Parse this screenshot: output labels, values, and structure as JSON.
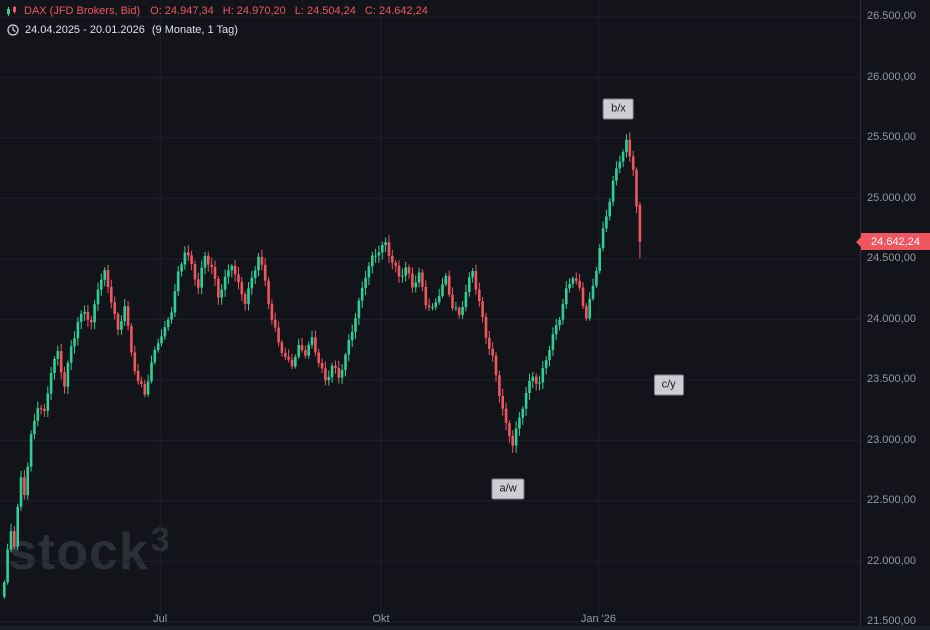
{
  "header": {
    "symbol": "DAX (JFD Brokers, Bid)",
    "ohlc": {
      "open": "O: 24.947,34",
      "high": "H: 24.970,20",
      "low": "L: 24.504,24",
      "close": "C: 24.642,24"
    },
    "date_range": "24.04.2025 - 20.01.2026",
    "duration": "(9 Monate, 1 Tag)"
  },
  "icons": {
    "chart_type": "candlestick-icon",
    "clock": "clock-icon"
  },
  "watermark": {
    "text": "stock",
    "sup": "3"
  },
  "price_tag": {
    "label": "24.642,24",
    "price": 24642.24
  },
  "colors": {
    "bg": "#12141a",
    "grid": "#1e212a",
    "up": "#2fcf94",
    "down": "#ef5660",
    "axis_text": "#9299a3",
    "date_text": "#dde0e5",
    "annotation_bg": "#ccced3",
    "annotation_text": "#17191d",
    "price_tag_bg": "#ef5660",
    "watermark": "#2b2f37"
  },
  "chart_data": {
    "type": "candlestick",
    "title": "DAX (JFD Brokers, Bid)",
    "timeframe": "1 Tag",
    "period": "9 Monate, 1 Tag",
    "ohlc_last": {
      "open": 24947.34,
      "high": 24970.2,
      "low": 24504.24,
      "close": 24642.24
    },
    "final_candle": {
      "o": 24947.34,
      "h": 24970.2,
      "l": 24504.24,
      "c": 24642.24
    },
    "total_candles": 191,
    "y_axis": {
      "min": 21350,
      "max": 26650,
      "ticks": [
        {
          "price": 26500,
          "label": "26.500,00"
        },
        {
          "price": 26000,
          "label": "26.000,00"
        },
        {
          "price": 25500,
          "label": "25.500,00"
        },
        {
          "price": 25000,
          "label": "25.000,00"
        },
        {
          "price": 24500,
          "label": "24.500,00"
        },
        {
          "price": 24000,
          "label": "24.000,00"
        },
        {
          "price": 23500,
          "label": "23.500,00"
        },
        {
          "price": 23000,
          "label": "23.000,00"
        },
        {
          "price": 22500,
          "label": "22.500,00"
        },
        {
          "price": 22000,
          "label": "22.000,00"
        },
        {
          "price": 21500,
          "label": "21.500,00"
        }
      ]
    },
    "x_axis": {
      "ticks": [
        {
          "index": 47,
          "label": "Jul"
        },
        {
          "index": 113,
          "label": "Okt"
        },
        {
          "index": 178,
          "label": "Jan '26"
        }
      ]
    },
    "annotations": [
      {
        "text": "b/x",
        "index": 184,
        "price": 25740
      },
      {
        "text": "c/y",
        "index": 199,
        "price": 23460
      },
      {
        "text": "a/w",
        "index": 151,
        "price": 22600
      }
    ],
    "price_path_waypoints": [
      [
        0,
        21800
      ],
      [
        1,
        22050
      ],
      [
        2,
        22250
      ],
      [
        3,
        22150
      ],
      [
        4,
        22450
      ],
      [
        5,
        22700
      ],
      [
        6,
        22600
      ],
      [
        8,
        23050
      ],
      [
        10,
        23300
      ],
      [
        12,
        23200
      ],
      [
        14,
        23550
      ],
      [
        16,
        23700
      ],
      [
        18,
        23450
      ],
      [
        20,
        23800
      ],
      [
        22,
        24000
      ],
      [
        24,
        24100
      ],
      [
        26,
        23950
      ],
      [
        28,
        24250
      ],
      [
        30,
        24350
      ],
      [
        32,
        24150
      ],
      [
        34,
        23900
      ],
      [
        36,
        24150
      ],
      [
        38,
        23750
      ],
      [
        40,
        23500
      ],
      [
        42,
        23380
      ],
      [
        44,
        23600
      ],
      [
        46,
        23800
      ],
      [
        48,
        23900
      ],
      [
        50,
        24100
      ],
      [
        52,
        24400
      ],
      [
        54,
        24600
      ],
      [
        56,
        24450
      ],
      [
        58,
        24250
      ],
      [
        60,
        24500
      ],
      [
        62,
        24400
      ],
      [
        64,
        24200
      ],
      [
        66,
        24350
      ],
      [
        68,
        24500
      ],
      [
        70,
        24300
      ],
      [
        72,
        24150
      ],
      [
        74,
        24300
      ],
      [
        76,
        24500
      ],
      [
        78,
        24300
      ],
      [
        80,
        24000
      ],
      [
        82,
        23850
      ],
      [
        84,
        23700
      ],
      [
        86,
        23650
      ],
      [
        88,
        23750
      ],
      [
        90,
        23700
      ],
      [
        92,
        23800
      ],
      [
        94,
        23650
      ],
      [
        96,
        23500
      ],
      [
        98,
        23650
      ],
      [
        100,
        23550
      ],
      [
        102,
        23700
      ],
      [
        104,
        23900
      ],
      [
        106,
        24100
      ],
      [
        108,
        24350
      ],
      [
        110,
        24500
      ],
      [
        112,
        24600
      ],
      [
        114,
        24650
      ],
      [
        116,
        24500
      ],
      [
        118,
        24350
      ],
      [
        120,
        24400
      ],
      [
        122,
        24250
      ],
      [
        124,
        24350
      ],
      [
        126,
        24150
      ],
      [
        128,
        24100
      ],
      [
        130,
        24250
      ],
      [
        132,
        24350
      ],
      [
        134,
        24100
      ],
      [
        136,
        24000
      ],
      [
        138,
        24200
      ],
      [
        140,
        24400
      ],
      [
        142,
        24150
      ],
      [
        144,
        23900
      ],
      [
        146,
        23700
      ],
      [
        148,
        23400
      ],
      [
        150,
        23100
      ],
      [
        152,
        22950
      ],
      [
        154,
        23150
      ],
      [
        156,
        23400
      ],
      [
        158,
        23550
      ],
      [
        160,
        23500
      ],
      [
        162,
        23700
      ],
      [
        164,
        23850
      ],
      [
        166,
        24000
      ],
      [
        168,
        24200
      ],
      [
        170,
        24350
      ],
      [
        172,
        24250
      ],
      [
        174,
        24050
      ],
      [
        176,
        24300
      ],
      [
        178,
        24600
      ],
      [
        180,
        24850
      ],
      [
        182,
        25100
      ],
      [
        184,
        25300
      ],
      [
        186,
        25450
      ],
      [
        187,
        25350
      ],
      [
        188,
        25280
      ],
      [
        189,
        24950
      ],
      [
        190,
        24642
      ]
    ]
  }
}
